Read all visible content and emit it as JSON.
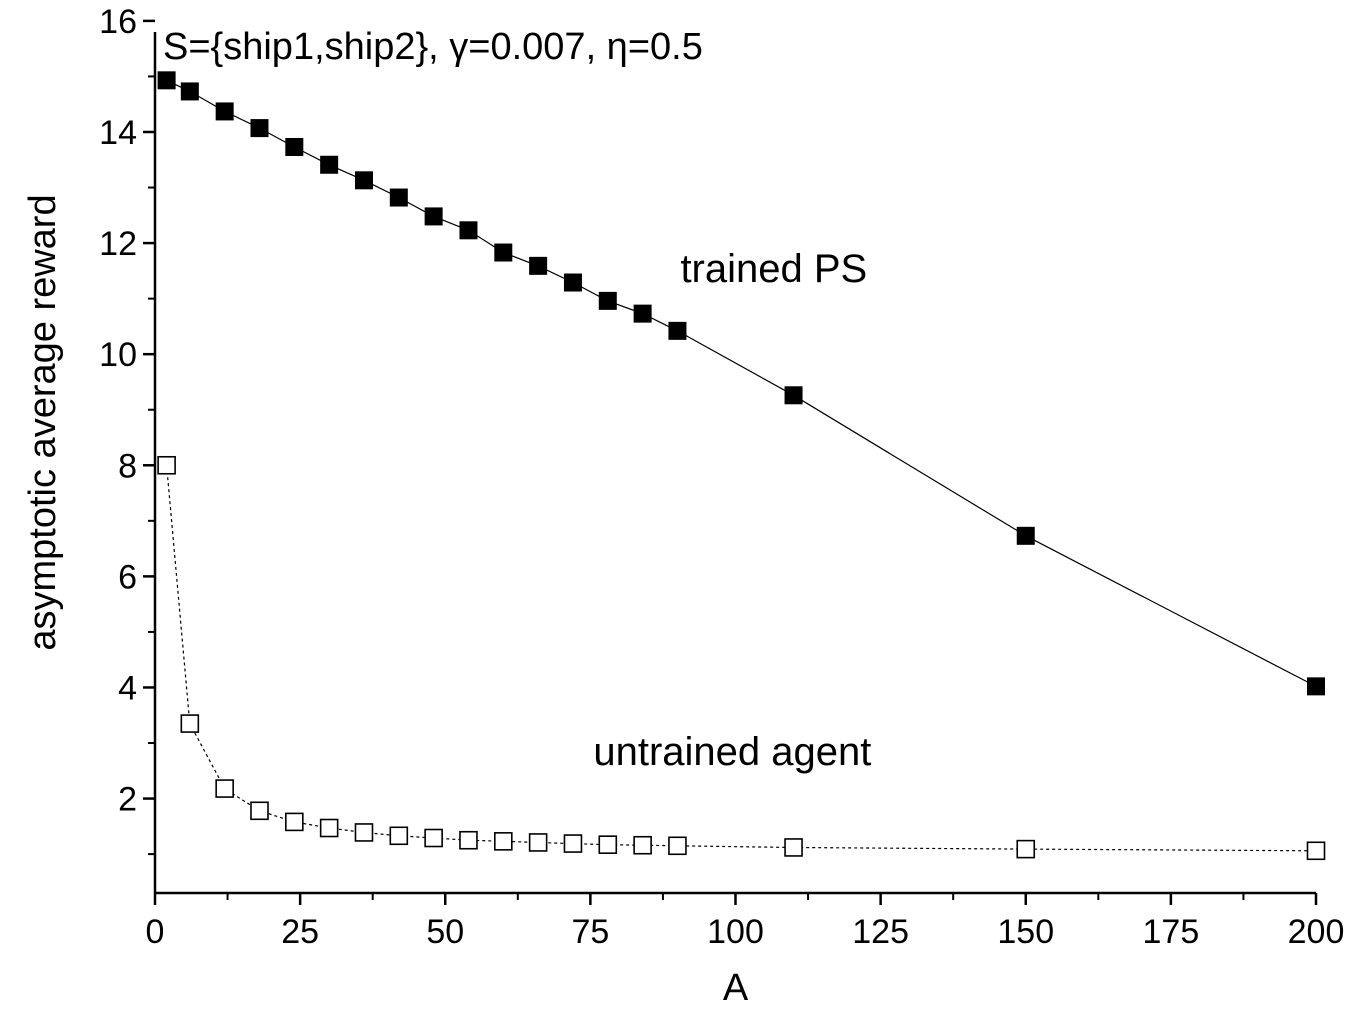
{
  "chart_data": {
    "type": "scatter",
    "title": "S={ship1,ship2}, γ=0.007, η=0.5",
    "xlabel": "A",
    "ylabel": "asymptotic average reward",
    "xlim": [
      0,
      200
    ],
    "ylim": [
      0.3,
      15.8
    ],
    "xticks": [
      0,
      25,
      50,
      75,
      100,
      125,
      150,
      175,
      200
    ],
    "yticks": [
      2,
      4,
      6,
      8,
      10,
      12,
      14,
      16
    ],
    "x_minor_step": 12.5,
    "y_minor_step": 1,
    "grid": false,
    "legend": "none",
    "series": [
      {
        "name": "trained PS",
        "marker": "filled-square",
        "line": "solid",
        "color": "#000000",
        "x": [
          2,
          6,
          12,
          18,
          24,
          30,
          36,
          42,
          48,
          54,
          60,
          66,
          72,
          78,
          84,
          90,
          110,
          150,
          200
        ],
        "y": [
          14.93,
          14.73,
          14.37,
          14.07,
          13.73,
          13.41,
          13.13,
          12.82,
          12.48,
          12.23,
          11.83,
          11.59,
          11.29,
          10.96,
          10.73,
          10.42,
          9.26,
          6.73,
          4.02
        ]
      },
      {
        "name": "untrained agent",
        "marker": "open-square",
        "line": "dashed",
        "color": "#000000",
        "x": [
          2,
          6,
          12,
          18,
          24,
          30,
          36,
          42,
          48,
          54,
          60,
          66,
          72,
          78,
          84,
          90,
          110,
          150,
          200
        ],
        "y": [
          8.0,
          3.35,
          2.18,
          1.78,
          1.58,
          1.47,
          1.39,
          1.33,
          1.29,
          1.25,
          1.23,
          1.21,
          1.19,
          1.17,
          1.16,
          1.15,
          1.12,
          1.09,
          1.06
        ]
      }
    ],
    "annotations": [
      {
        "text": "trained PS",
        "x": 90,
        "y": 11.3
      },
      {
        "text": "untrained agent",
        "x": 75,
        "y": 2.6
      }
    ]
  }
}
